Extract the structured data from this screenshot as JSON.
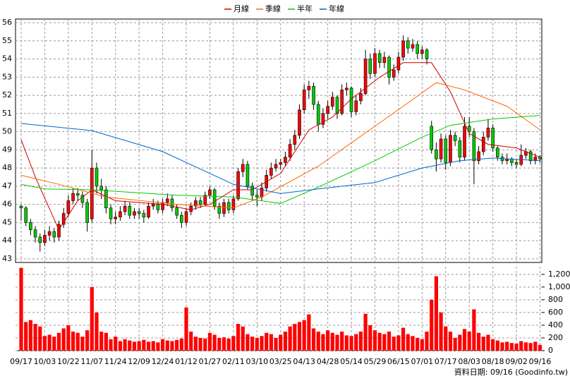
{
  "chart_data": {
    "type": "candlestick",
    "categories": [
      "09/17",
      null,
      null,
      null,
      null,
      "10/03",
      null,
      null,
      null,
      null,
      "10/22",
      null,
      null,
      null,
      null,
      "11/07",
      null,
      null,
      null,
      null,
      "11/24",
      null,
      null,
      null,
      null,
      "12/09",
      null,
      null,
      null,
      null,
      "12/24",
      null,
      null,
      null,
      null,
      "01/12",
      null,
      null,
      null,
      null,
      "01/27",
      null,
      null,
      null,
      null,
      "02/11",
      null,
      null,
      null,
      null,
      "03/10",
      null,
      null,
      null,
      null,
      "03/25",
      null,
      null,
      null,
      null,
      "04/13",
      null,
      null,
      null,
      null,
      "04/28",
      null,
      null,
      null,
      null,
      "05/14",
      null,
      null,
      null,
      null,
      "05/29",
      null,
      null,
      null,
      null,
      "06/15",
      null,
      null,
      null,
      null,
      "07/01",
      null,
      null,
      null,
      null,
      "07/17",
      null,
      null,
      null,
      null,
      "08/03",
      null,
      null,
      null,
      null,
      "08/18",
      null,
      null,
      null,
      null,
      "09/02",
      null,
      null,
      null,
      null,
      "09/16"
    ],
    "ohlc": [
      [
        45.9,
        46.0,
        45.1,
        45.8
      ],
      [
        45.8,
        45.9,
        44.8,
        45.0
      ],
      [
        45.0,
        45.2,
        44.3,
        44.6
      ],
      [
        44.6,
        44.8,
        43.9,
        44.2
      ],
      [
        44.2,
        44.4,
        43.4,
        43.9
      ],
      [
        43.9,
        44.6,
        43.7,
        44.3
      ],
      [
        44.3,
        44.8,
        44.0,
        44.5
      ],
      [
        44.5,
        44.7,
        43.9,
        44.2
      ],
      [
        44.2,
        45.1,
        44.0,
        44.9
      ],
      [
        44.9,
        45.8,
        44.7,
        45.5
      ],
      [
        45.5,
        46.5,
        45.3,
        46.2
      ],
      [
        46.2,
        46.9,
        46.0,
        46.6
      ],
      [
        46.6,
        46.9,
        46.2,
        46.5
      ],
      [
        46.5,
        46.7,
        45.8,
        46.1
      ],
      [
        46.1,
        46.3,
        44.5,
        45.0
      ],
      [
        45.2,
        49.0,
        45.0,
        48.0
      ],
      [
        48.0,
        48.3,
        46.6,
        47.0
      ],
      [
        47.0,
        47.4,
        46.3,
        46.8
      ],
      [
        46.8,
        47.0,
        45.5,
        45.8
      ],
      [
        45.8,
        46.0,
        44.9,
        45.2
      ],
      [
        45.2,
        45.6,
        44.9,
        45.3
      ],
      [
        45.3,
        45.9,
        45.1,
        45.6
      ],
      [
        45.6,
        46.2,
        45.4,
        45.9
      ],
      [
        45.9,
        46.1,
        45.2,
        45.4
      ],
      [
        45.4,
        45.8,
        45.2,
        45.6
      ],
      [
        45.6,
        45.8,
        45.2,
        45.5
      ],
      [
        45.5,
        45.7,
        45.0,
        45.3
      ],
      [
        45.3,
        46.1,
        45.2,
        45.9
      ],
      [
        45.9,
        46.3,
        45.7,
        46.0
      ],
      [
        46.0,
        46.2,
        45.5,
        45.7
      ],
      [
        45.7,
        46.3,
        45.5,
        46.1
      ],
      [
        46.1,
        46.6,
        45.9,
        46.3
      ],
      [
        46.3,
        46.5,
        45.6,
        45.8
      ],
      [
        45.8,
        46.0,
        45.2,
        45.4
      ],
      [
        45.4,
        45.6,
        44.7,
        45.0
      ],
      [
        45.0,
        45.8,
        44.8,
        45.6
      ],
      [
        45.6,
        46.1,
        45.4,
        45.9
      ],
      [
        45.9,
        46.4,
        45.7,
        46.2
      ],
      [
        46.2,
        46.4,
        45.8,
        46.0
      ],
      [
        46.0,
        46.7,
        45.9,
        46.5
      ],
      [
        46.5,
        47.0,
        46.3,
        46.8
      ],
      [
        46.8,
        46.9,
        45.7,
        45.9
      ],
      [
        45.9,
        46.1,
        45.2,
        45.5
      ],
      [
        45.5,
        46.3,
        45.3,
        46.1
      ],
      [
        46.1,
        46.3,
        45.5,
        45.7
      ],
      [
        45.7,
        46.5,
        45.5,
        46.3
      ],
      [
        46.3,
        48.0,
        46.2,
        47.8
      ],
      [
        47.8,
        48.5,
        47.5,
        48.2
      ],
      [
        48.2,
        48.4,
        46.8,
        47.0
      ],
      [
        47.0,
        47.2,
        46.2,
        46.5
      ],
      [
        46.5,
        46.8,
        45.9,
        46.4
      ],
      [
        46.4,
        47.2,
        46.2,
        46.9
      ],
      [
        46.9,
        47.9,
        46.7,
        47.6
      ],
      [
        47.6,
        48.3,
        47.4,
        48.0
      ],
      [
        48.0,
        48.5,
        47.8,
        48.2
      ],
      [
        48.2,
        48.5,
        47.9,
        48.3
      ],
      [
        48.3,
        48.9,
        48.1,
        48.6
      ],
      [
        48.6,
        49.6,
        48.4,
        49.3
      ],
      [
        49.3,
        50.1,
        49.0,
        49.8
      ],
      [
        49.8,
        51.5,
        49.6,
        51.2
      ],
      [
        51.2,
        52.6,
        51.0,
        52.3
      ],
      [
        52.3,
        52.8,
        51.8,
        52.5
      ],
      [
        52.5,
        52.7,
        51.2,
        51.5
      ],
      [
        51.5,
        51.7,
        50.0,
        50.4
      ],
      [
        50.4,
        51.3,
        50.2,
        51.0
      ],
      [
        51.0,
        51.7,
        50.7,
        51.4
      ],
      [
        51.4,
        52.2,
        51.2,
        51.9
      ],
      [
        51.9,
        52.0,
        50.7,
        51.0
      ],
      [
        51.0,
        52.6,
        50.9,
        52.3
      ],
      [
        52.3,
        52.7,
        52.0,
        52.4
      ],
      [
        52.4,
        52.5,
        50.8,
        51.1
      ],
      [
        51.1,
        52.0,
        50.9,
        51.7
      ],
      [
        51.7,
        52.4,
        51.5,
        52.1
      ],
      [
        52.1,
        54.5,
        52.0,
        54.0
      ],
      [
        54.0,
        54.3,
        52.9,
        53.2
      ],
      [
        53.2,
        54.6,
        53.0,
        54.3
      ],
      [
        54.3,
        54.5,
        53.5,
        53.8
      ],
      [
        53.8,
        54.4,
        53.5,
        54.1
      ],
      [
        54.1,
        54.2,
        52.6,
        53.0
      ],
      [
        53.0,
        53.7,
        52.8,
        53.4
      ],
      [
        53.4,
        54.4,
        53.2,
        54.1
      ],
      [
        54.1,
        55.3,
        53.9,
        55.0
      ],
      [
        55.0,
        55.2,
        54.3,
        54.6
      ],
      [
        54.6,
        55.1,
        54.4,
        54.8
      ],
      [
        54.8,
        55.0,
        54.0,
        54.3
      ],
      [
        54.3,
        54.7,
        54.0,
        54.5
      ],
      [
        54.5,
        54.6,
        53.7,
        54.0
      ],
      [
        50.3,
        50.6,
        48.8,
        49.0
      ],
      [
        49.0,
        49.4,
        47.8,
        48.5
      ],
      [
        48.5,
        49.9,
        48.3,
        49.6
      ],
      [
        49.6,
        49.8,
        47.9,
        48.3
      ],
      [
        48.3,
        50.1,
        48.1,
        49.8
      ],
      [
        49.8,
        50.0,
        49.2,
        49.5
      ],
      [
        49.5,
        49.7,
        48.3,
        48.6
      ],
      [
        48.6,
        50.8,
        48.4,
        50.3
      ],
      [
        50.3,
        50.8,
        49.7,
        50.0
      ],
      [
        50.0,
        50.2,
        47.1,
        48.4
      ],
      [
        48.4,
        49.2,
        48.2,
        48.9
      ],
      [
        48.9,
        50.0,
        48.7,
        49.7
      ],
      [
        49.7,
        50.7,
        49.5,
        50.2
      ],
      [
        50.2,
        50.4,
        48.9,
        49.1
      ],
      [
        49.1,
        49.2,
        48.4,
        48.6
      ],
      [
        48.6,
        48.8,
        48.2,
        48.4
      ],
      [
        48.4,
        48.8,
        48.2,
        48.5
      ],
      [
        48.5,
        48.6,
        48.1,
        48.3
      ],
      [
        48.3,
        48.5,
        48.0,
        48.2
      ],
      [
        48.2,
        49.3,
        48.1,
        48.7
      ],
      [
        48.7,
        49.1,
        48.5,
        48.9
      ],
      [
        48.9,
        49.0,
        48.2,
        48.4
      ],
      [
        48.4,
        48.8,
        48.2,
        48.6
      ],
      [
        48.6,
        48.7,
        48.3,
        48.5
      ]
    ],
    "up_color": "#ff0000",
    "down_color": "#00cc00",
    "ylim": [
      42.8,
      56.2
    ],
    "yticks": [
      43,
      44,
      45,
      46,
      47,
      48,
      49,
      50,
      51,
      52,
      53,
      54,
      55,
      56
    ],
    "grid": true,
    "series": [
      {
        "name": "月線",
        "color": "#cc0000",
        "x": [
          0,
          3,
          8,
          12,
          15,
          20,
          30,
          36,
          40,
          45,
          49,
          55,
          61,
          66,
          70,
          76,
          81,
          87,
          91,
          95,
          99,
          105,
          110
        ],
        "values": [
          49.55,
          47.5,
          44.6,
          46.2,
          46.8,
          46.2,
          46.0,
          45.7,
          46.0,
          46.8,
          46.8,
          47.7,
          50.1,
          50.8,
          51.8,
          53.0,
          53.8,
          53.8,
          52.2,
          49.9,
          49.3,
          49.1,
          48.6
        ]
      },
      {
        "name": "季線",
        "color": "#ff6600",
        "x": [
          0,
          8,
          18,
          33,
          45,
          51,
          63,
          75,
          81,
          88,
          94,
          103,
          110
        ],
        "values": [
          47.6,
          47.1,
          46.4,
          46.0,
          45.8,
          46.4,
          48.1,
          50.3,
          51.4,
          52.7,
          52.3,
          51.4,
          50.1
        ]
      },
      {
        "name": "半年",
        "color": "#00cc00",
        "x": [
          0,
          5,
          15,
          33,
          45,
          55,
          63,
          75,
          85,
          91,
          100,
          110
        ],
        "values": [
          47.1,
          46.85,
          46.8,
          46.5,
          46.4,
          46.05,
          46.95,
          48.4,
          49.7,
          50.35,
          50.7,
          50.9
        ]
      },
      {
        "name": "年線",
        "color": "#0066cc",
        "x": [
          0,
          15,
          30,
          40,
          45,
          55,
          63,
          75,
          85,
          93,
          100,
          110
        ],
        "values": [
          50.45,
          50.06,
          48.9,
          47.7,
          47.1,
          46.6,
          46.85,
          47.2,
          48.0,
          48.4,
          48.55,
          48.4
        ]
      }
    ],
    "volume": {
      "color": "#ff0000",
      "values": [
        1300,
        450,
        480,
        420,
        380,
        230,
        250,
        220,
        280,
        350,
        400,
        300,
        280,
        220,
        320,
        1000,
        600,
        300,
        280,
        180,
        220,
        150,
        180,
        160,
        140,
        150,
        170,
        140,
        150,
        130,
        180,
        160,
        150,
        170,
        190,
        680,
        300,
        220,
        200,
        190,
        280,
        250,
        200,
        210,
        190,
        230,
        420,
        380,
        260,
        220,
        200,
        230,
        280,
        260,
        200,
        250,
        300,
        380,
        420,
        450,
        480,
        570,
        350,
        300,
        260,
        320,
        280,
        250,
        300,
        240,
        230,
        260,
        300,
        580,
        400,
        320,
        280,
        260,
        300,
        220,
        240,
        360,
        260,
        230,
        200,
        180,
        300,
        800,
        1170,
        600,
        380,
        300,
        200,
        250,
        340,
        300,
        650,
        280,
        220,
        250,
        180,
        160,
        130,
        140,
        120,
        110,
        150,
        130,
        120,
        140,
        90
      ],
      "ylim": [
        0,
        1320
      ],
      "yticks": [
        0,
        200,
        400,
        600,
        800,
        {
          "value": 1000,
          "label": "1,000"
        },
        {
          "value": 1200,
          "label": "1,200"
        }
      ]
    },
    "footer": "資料日期: 09/16 (Goodinfo.tw)"
  }
}
